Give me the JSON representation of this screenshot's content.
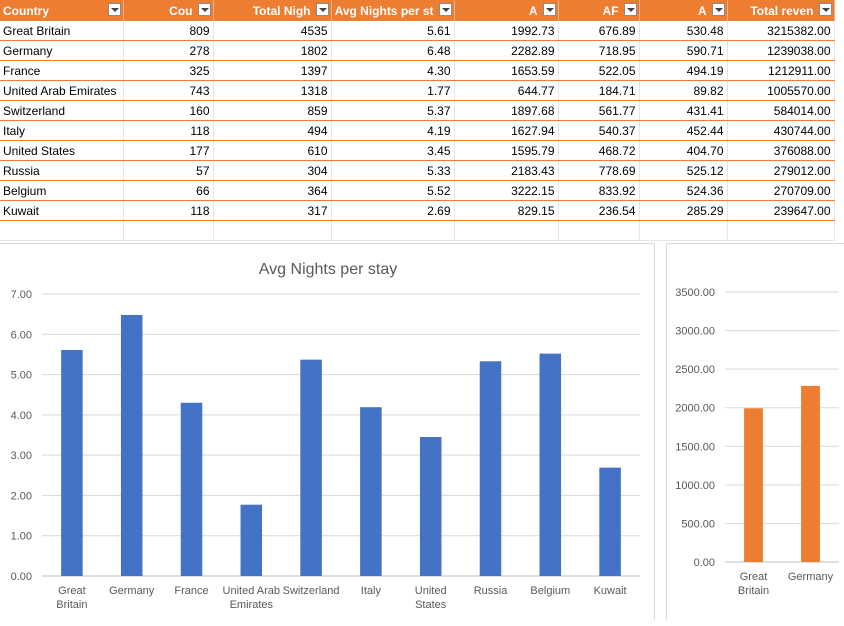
{
  "table": {
    "headers": [
      "Country",
      "Cou",
      "Total Nigh",
      "Avg Nights per st",
      "A",
      "AF",
      "A",
      "Total reven"
    ],
    "rows": [
      [
        "Great Britain",
        "809",
        "4535",
        "5.61",
        "1992.73",
        "676.89",
        "530.48",
        "3215382.00"
      ],
      [
        "Germany",
        "278",
        "1802",
        "6.48",
        "2282.89",
        "718.95",
        "590.71",
        "1239038.00"
      ],
      [
        "France",
        "325",
        "1397",
        "4.30",
        "1653.59",
        "522.05",
        "494.19",
        "1212911.00"
      ],
      [
        "United Arab Emirates",
        "743",
        "1318",
        "1.77",
        "644.77",
        "184.71",
        "89.82",
        "1005570.00"
      ],
      [
        "Switzerland",
        "160",
        "859",
        "5.37",
        "1897.68",
        "561.77",
        "431.41",
        "584014.00"
      ],
      [
        "Italy",
        "118",
        "494",
        "4.19",
        "1627.94",
        "540.37",
        "452.44",
        "430744.00"
      ],
      [
        "United States",
        "177",
        "610",
        "3.45",
        "1595.79",
        "468.72",
        "404.70",
        "376088.00"
      ],
      [
        "Russia",
        "57",
        "304",
        "5.33",
        "2183.43",
        "778.69",
        "525.12",
        "279012.00"
      ],
      [
        "Belgium",
        "66",
        "364",
        "5.52",
        "3222.15",
        "833.92",
        "524.36",
        "270709.00"
      ],
      [
        "Kuwait",
        "118",
        "317",
        "2.69",
        "829.15",
        "236.54",
        "285.29",
        "239647.00"
      ]
    ]
  },
  "chart_data": [
    {
      "type": "bar",
      "title": "Avg Nights per stay",
      "categories": [
        "Great Britain",
        "Germany",
        "France",
        "United Arab Emirates",
        "Switzerland",
        "Italy",
        "United States",
        "Russia",
        "Belgium",
        "Kuwait"
      ],
      "values": [
        5.61,
        6.48,
        4.3,
        1.77,
        5.37,
        4.19,
        3.45,
        5.33,
        5.52,
        2.69
      ],
      "ylim": [
        0,
        7
      ],
      "yticks": [
        "0.00",
        "1.00",
        "2.00",
        "3.00",
        "4.00",
        "5.00",
        "6.00",
        "7.00"
      ],
      "grid": true,
      "color": "#4472c4"
    },
    {
      "type": "bar",
      "title": "",
      "categories": [
        "Great Britain",
        "Germany"
      ],
      "values": [
        1992.73,
        2282.89
      ],
      "ylim": [
        0,
        3500
      ],
      "yticks": [
        "0.00",
        "500.00",
        "1000.00",
        "1500.00",
        "2000.00",
        "2500.00",
        "3000.00",
        "3500.00"
      ],
      "grid": true,
      "color": "#ed7d31"
    }
  ]
}
